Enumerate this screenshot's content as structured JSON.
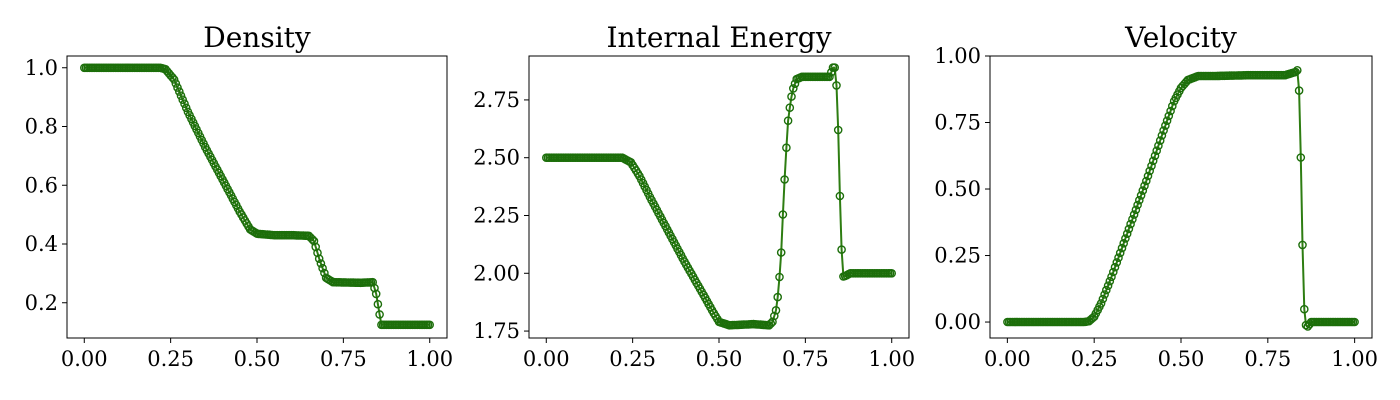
{
  "colors": {
    "line": "#2e7d12",
    "marker": "#1c6e0a"
  },
  "chart_data": [
    {
      "type": "line",
      "title": "Density",
      "xlabel": "",
      "ylabel": "",
      "xlim": [
        -0.05,
        1.05
      ],
      "ylim": [
        0.08,
        1.04
      ],
      "xticks": [
        0,
        0.25,
        0.5,
        0.75,
        1.0
      ],
      "xtick_labels": [
        "0.00",
        "0.25",
        "0.50",
        "0.75",
        "1.00"
      ],
      "yticks": [
        0.2,
        0.4,
        0.6,
        0.8,
        1.0
      ],
      "ytick_labels": [
        "0.2",
        "0.4",
        "0.6",
        "0.8",
        "1.0"
      ],
      "series": [
        {
          "name": "density",
          "marker": "circle",
          "points": [
            [
              0.0,
              1.0
            ],
            [
              0.22,
              1.0
            ],
            [
              0.235,
              0.995
            ],
            [
              0.26,
              0.96
            ],
            [
              0.3,
              0.85
            ],
            [
              0.35,
              0.73
            ],
            [
              0.4,
              0.62
            ],
            [
              0.45,
              0.51
            ],
            [
              0.48,
              0.45
            ],
            [
              0.5,
              0.435
            ],
            [
              0.55,
              0.43
            ],
            [
              0.6,
              0.43
            ],
            [
              0.65,
              0.428
            ],
            [
              0.665,
              0.41
            ],
            [
              0.68,
              0.35
            ],
            [
              0.7,
              0.285
            ],
            [
              0.72,
              0.27
            ],
            [
              0.8,
              0.268
            ],
            [
              0.835,
              0.27
            ],
            [
              0.845,
              0.23
            ],
            [
              0.855,
              0.16
            ],
            [
              0.86,
              0.125
            ],
            [
              1.0,
              0.125
            ]
          ]
        }
      ]
    },
    {
      "type": "line",
      "title": "Internal Energy",
      "xlabel": "",
      "ylabel": "",
      "xlim": [
        -0.05,
        1.05
      ],
      "ylim": [
        1.72,
        2.94
      ],
      "xticks": [
        0,
        0.25,
        0.5,
        0.75,
        1.0
      ],
      "xtick_labels": [
        "0.00",
        "0.25",
        "0.50",
        "0.75",
        "1.00"
      ],
      "yticks": [
        1.75,
        2.0,
        2.25,
        2.5,
        2.75
      ],
      "ytick_labels": [
        "1.75",
        "2.00",
        "2.25",
        "2.50",
        "2.75"
      ],
      "series": [
        {
          "name": "internal energy",
          "marker": "circle",
          "points": [
            [
              0.0,
              2.5
            ],
            [
              0.22,
              2.5
            ],
            [
              0.245,
              2.48
            ],
            [
              0.27,
              2.42
            ],
            [
              0.3,
              2.33
            ],
            [
              0.35,
              2.19
            ],
            [
              0.4,
              2.05
            ],
            [
              0.45,
              1.92
            ],
            [
              0.48,
              1.84
            ],
            [
              0.5,
              1.79
            ],
            [
              0.53,
              1.775
            ],
            [
              0.6,
              1.78
            ],
            [
              0.645,
              1.775
            ],
            [
              0.655,
              1.79
            ],
            [
              0.665,
              1.84
            ],
            [
              0.672,
              1.92
            ],
            [
              0.68,
              2.09
            ],
            [
              0.687,
              2.32
            ],
            [
              0.694,
              2.52
            ],
            [
              0.7,
              2.66
            ],
            [
              0.708,
              2.75
            ],
            [
              0.715,
              2.8
            ],
            [
              0.725,
              2.84
            ],
            [
              0.74,
              2.85
            ],
            [
              0.82,
              2.85
            ],
            [
              0.83,
              2.89
            ],
            [
              0.838,
              2.89
            ],
            [
              0.845,
              2.62
            ],
            [
              0.852,
              2.22
            ],
            [
              0.858,
              1.985
            ],
            [
              0.868,
              1.99
            ],
            [
              0.88,
              2.0
            ],
            [
              1.0,
              2.0
            ]
          ]
        }
      ]
    },
    {
      "type": "line",
      "title": "Velocity",
      "xlabel": "",
      "ylabel": "",
      "xlim": [
        -0.05,
        1.05
      ],
      "ylim": [
        -0.06,
        1.0
      ],
      "xticks": [
        0,
        0.25,
        0.5,
        0.75,
        1.0
      ],
      "xtick_labels": [
        "0.00",
        "0.25",
        "0.50",
        "0.75",
        "1.00"
      ],
      "yticks": [
        0.0,
        0.25,
        0.5,
        0.75,
        1.0
      ],
      "ytick_labels": [
        "0.00",
        "0.25",
        "0.50",
        "0.75",
        "1.00"
      ],
      "series": [
        {
          "name": "velocity",
          "marker": "circle",
          "points": [
            [
              0.0,
              0.0
            ],
            [
              0.22,
              0.0
            ],
            [
              0.235,
              0.003
            ],
            [
              0.25,
              0.02
            ],
            [
              0.27,
              0.07
            ],
            [
              0.3,
              0.17
            ],
            [
              0.35,
              0.35
            ],
            [
              0.4,
              0.53
            ],
            [
              0.45,
              0.72
            ],
            [
              0.48,
              0.83
            ],
            [
              0.5,
              0.88
            ],
            [
              0.52,
              0.91
            ],
            [
              0.55,
              0.925
            ],
            [
              0.6,
              0.925
            ],
            [
              0.7,
              0.928
            ],
            [
              0.8,
              0.928
            ],
            [
              0.83,
              0.94
            ],
            [
              0.838,
              0.95
            ],
            [
              0.843,
              0.75
            ],
            [
              0.85,
              0.29
            ],
            [
              0.856,
              0.0
            ],
            [
              0.863,
              -0.02
            ],
            [
              0.875,
              0.0
            ],
            [
              1.0,
              0.0
            ]
          ]
        }
      ]
    }
  ]
}
